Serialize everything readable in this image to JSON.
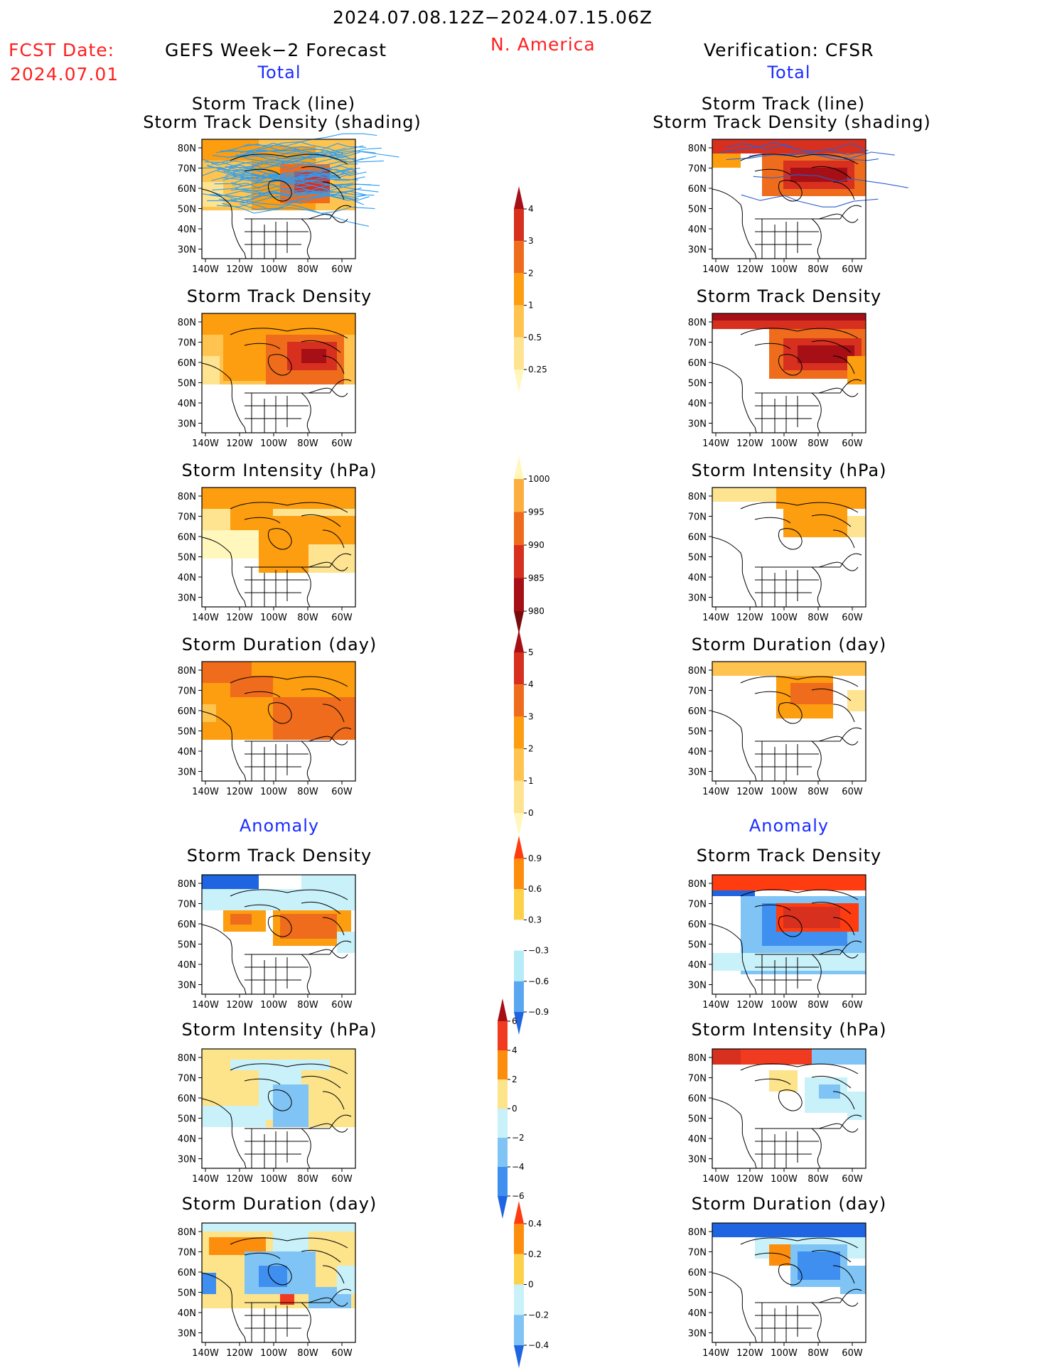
{
  "header": {
    "date_range": "2024.07.08.12Z−2024.07.15.06Z",
    "fcst_label": "FCST Date:",
    "fcst_date": "2024.07.01",
    "forecast_title": "GEFS Week−2 Forecast",
    "region": "N. America",
    "verification_title": "Verification: CFSR"
  },
  "sections": {
    "total_label": "Total",
    "anomaly_label": "Anomaly"
  },
  "panel_titles": {
    "track_line": "Storm Track (line)",
    "track_shading": "Storm Track Density (shading)",
    "track_density": "Storm Track Density",
    "intensity": "Storm Intensity (hPa)",
    "duration": "Storm Duration (day)"
  },
  "axes": {
    "lat_ticks": [
      "80N",
      "70N",
      "60N",
      "50N",
      "40N",
      "30N"
    ],
    "lon_ticks": [
      "140W",
      "120W",
      "100W",
      "80W",
      "60W"
    ]
  },
  "colorbars": {
    "track_density_total": {
      "labels": [
        "4",
        "3",
        "2",
        "1",
        "0.5",
        "0.25"
      ],
      "colors": [
        "#a50f15",
        "#d7301f",
        "#ef6c1c",
        "#fd9d10",
        "#fec44f",
        "#fee391",
        "#fff7bc"
      ]
    },
    "intensity_total": {
      "labels": [
        "1000",
        "995",
        "990",
        "985",
        "980"
      ],
      "colors": [
        "#fff7bc",
        "#fdae40",
        "#ef6c1c",
        "#d7301f",
        "#a50f15",
        "#7a0b0b"
      ]
    },
    "duration_total": {
      "labels": [
        "5",
        "4",
        "3",
        "2",
        "1",
        "0"
      ],
      "colors": [
        "#a50f15",
        "#d7301f",
        "#ef6c1c",
        "#fd9d10",
        "#fec44f",
        "#fee391",
        "#fff7bc"
      ]
    },
    "density_anom": {
      "labels": [
        "0.9",
        "0.6",
        "0.3",
        "−0.3",
        "−0.6",
        "−0.9"
      ],
      "colors": [
        "#ff3b10",
        "#fd8d0c",
        "#fdd24a",
        "#ffffff",
        "#b5ecf7",
        "#5aa7f0",
        "#1f64e0"
      ]
    },
    "intensity_anom": {
      "labels": [
        "6",
        "4",
        "2",
        "0",
        "−2",
        "−4",
        "−6"
      ],
      "colors": [
        "#a50f15",
        "#f03b20",
        "#fd8d0c",
        "#fde38a",
        "#c9f1fa",
        "#7fc4f5",
        "#3f8ff0",
        "#1f64e0"
      ]
    },
    "duration_anom": {
      "labels": [
        "0.4",
        "0.2",
        "0",
        "−0.2",
        "−0.4"
      ],
      "colors": [
        "#ff3b10",
        "#fd8d0c",
        "#fdd24a",
        "#c9f1fa",
        "#7fc4f5",
        "#1f64e0"
      ]
    }
  },
  "colors": {
    "accent_red": "#ff2020",
    "accent_blue": "#1a2cff",
    "track_line": "#2a9df4"
  }
}
